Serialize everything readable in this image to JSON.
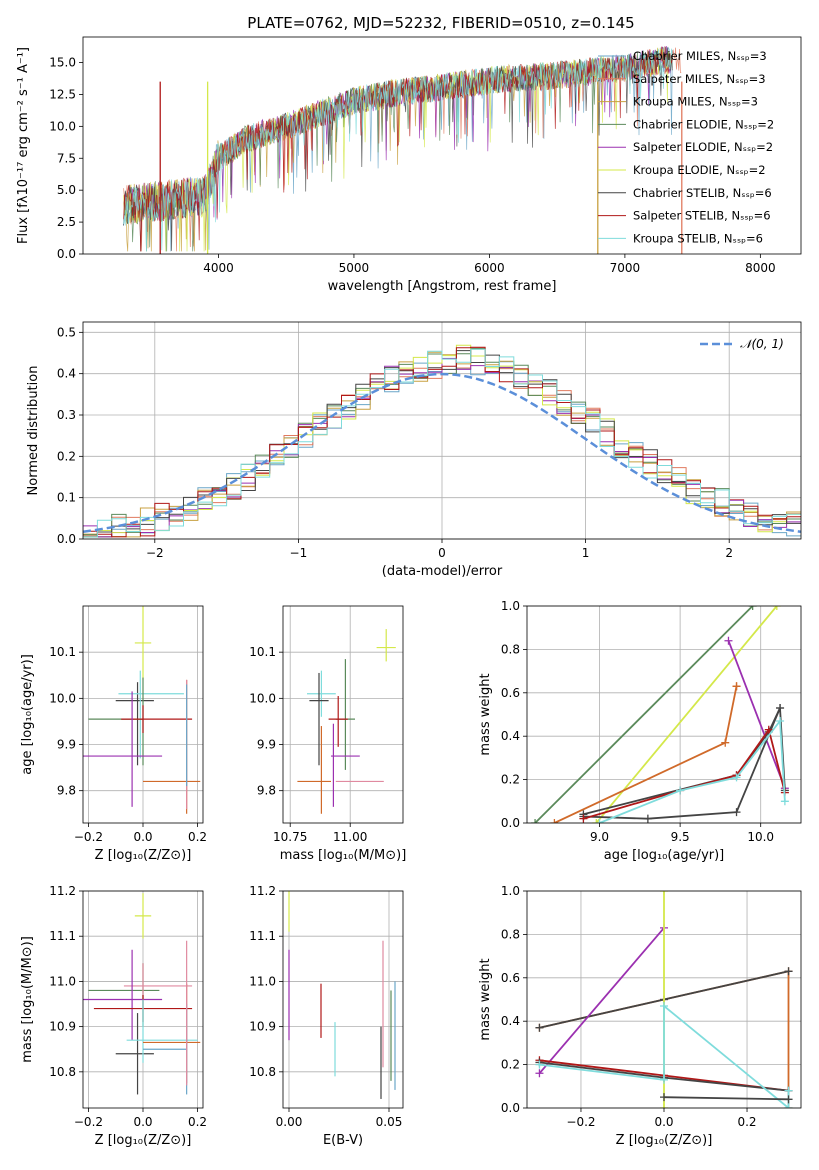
{
  "figure_title": "PLATE=0762, MJD=52232, FIBERID=0510, z=0.145",
  "chart_data": [
    {
      "id": "spectrum",
      "type": "line",
      "title": "PLATE=0762, MJD=52232, FIBERID=0510, z=0.145",
      "xlabel": "wavelength [Angstrom, rest frame]",
      "ylabel": "Flux [fλ10⁻¹⁷ erg cm⁻² s⁻¹ A⁻¹]",
      "xlim": [
        3000,
        8300
      ],
      "ylim": [
        0,
        17
      ],
      "xticks": [
        4000,
        5000,
        6000,
        7000,
        8000
      ],
      "yticks": [
        0.0,
        2.5,
        5.0,
        7.5,
        10.0,
        12.5,
        15.0
      ],
      "legend_position": "right",
      "series": [
        {
          "name": "Chabrier MILES, Nₛₛₚ=3",
          "color": "#6aa6c8"
        },
        {
          "name": "Salpeter MILES, Nₛₛₚ=3",
          "color": "#e07a5f"
        },
        {
          "name": "Kroupa MILES, Nₛₛₚ=3",
          "color": "#c8a040"
        },
        {
          "name": "Chabrier ELODIE, Nₛₛₚ=2",
          "color": "#5b8a5b"
        },
        {
          "name": "Salpeter ELODIE, Nₛₛₚ=2",
          "color": "#9b30b0"
        },
        {
          "name": "Kroupa ELODIE, Nₛₛₚ=2",
          "color": "#d4e84a"
        },
        {
          "name": "Chabrier STELIB, Nₛₛₚ=6",
          "color": "#444444"
        },
        {
          "name": "Salpeter STELIB, Nₛₛₚ=6",
          "color": "#b01818"
        },
        {
          "name": "Kroupa STELIB, Nₛₛₚ=6",
          "color": "#7fdcdc"
        }
      ],
      "continuum": {
        "x": [
          3300,
          3600,
          3900,
          4000,
          4200,
          4500,
          4800,
          5000,
          5300,
          5600,
          6000,
          6500,
          7000,
          7300
        ],
        "y": [
          3.8,
          4.2,
          4.6,
          7.5,
          9.0,
          10.0,
          11.2,
          12.0,
          12.6,
          13.0,
          13.6,
          14.0,
          14.6,
          15.2
        ]
      },
      "drops": [
        {
          "x": 3570,
          "color": "#b01818"
        },
        {
          "x": 3920,
          "color": "#d4e84a"
        },
        {
          "x": 6800,
          "color": "#c8a040"
        },
        {
          "x": 7420,
          "color": "#e07a5f"
        }
      ]
    },
    {
      "id": "residuals",
      "type": "line",
      "xlabel": "(data-model)/error",
      "ylabel": "Normed distribution",
      "xlim": [
        -2.5,
        2.5
      ],
      "ylim": [
        0,
        0.525
      ],
      "xticks": [
        -2,
        -1,
        0,
        1,
        2
      ],
      "yticks": [
        0.0,
        0.1,
        0.2,
        0.3,
        0.4,
        0.5
      ],
      "legend": "𝒩(0, 1)",
      "legend_position": "top-right",
      "gaussian_color": "#5b8fd9",
      "bin_edges_start": -2.5,
      "bin_width": 0.1,
      "hist_colors": [
        "#6aa6c8",
        "#e07a5f",
        "#c8a040",
        "#5b8a5b",
        "#9b30b0",
        "#d4e84a",
        "#444444",
        "#b01818",
        "#7fdcdc"
      ]
    },
    {
      "id": "age-vs-z",
      "type": "scatter",
      "xlabel": "Z [log₁₀(Z/Z⊙)]",
      "ylabel": "age  [log₁₀(age/yr)]",
      "xlim": [
        -0.22,
        0.22
      ],
      "ylim": [
        9.73,
        10.2
      ],
      "xticks": [
        -0.2,
        0.0,
        0.2
      ],
      "yticks": [
        9.8,
        9.9,
        10.0,
        10.1
      ],
      "points": [
        {
          "x": 0.0,
          "y": 10.12,
          "xerr": 0.03,
          "yerr": [
            0.08,
            0.08
          ],
          "color": "#d4e84a"
        },
        {
          "x": -0.02,
          "y": 9.995,
          "xerr": [
            0.08,
            0.06
          ],
          "yerr": [
            0.14,
            0.04
          ],
          "color": "#444444"
        },
        {
          "x": -0.01,
          "y": 10.01,
          "xerr": [
            0.08,
            0.16
          ],
          "yerr": [
            0.14,
            0.05
          ],
          "color": "#7fdcdc"
        },
        {
          "x": 0.0,
          "y": 9.955,
          "xerr": [
            0.2,
            0.0
          ],
          "yerr": [
            0.1,
            0.09
          ],
          "color": "#5b8a5b"
        },
        {
          "x": 0.0,
          "y": 9.955,
          "xerr": [
            0.08,
            0.18
          ],
          "yerr": [
            0.03,
            0.03
          ],
          "color": "#b01818"
        },
        {
          "x": -0.04,
          "y": 9.875,
          "xerr": [
            0.18,
            0.11
          ],
          "yerr": [
            0.11,
            0.14
          ],
          "color": "#9b30b0"
        },
        {
          "x": 0.16,
          "y": 9.82,
          "xerr": [
            0.16,
            0.05
          ],
          "yerr": [
            0.07,
            0.22
          ],
          "color": "#d06a2a"
        },
        {
          "x": 0.16,
          "y": 9.93,
          "xerr": 0.0,
          "yerr": [
            0.17,
            0.11
          ],
          "color": "#e08aa0"
        },
        {
          "x": 0.16,
          "y": 9.93,
          "xerr": 0.0,
          "yerr": [
            0.12,
            0.1
          ],
          "color": "#6aa6c8"
        }
      ]
    },
    {
      "id": "age-vs-mass",
      "type": "scatter",
      "xlabel": "mass [log₁₀(M/M⊙)]",
      "xlim": [
        10.72,
        11.22
      ],
      "ylim": [
        9.73,
        10.2
      ],
      "xticks": [
        10.75,
        11.0
      ],
      "xtick_labels": [
        "10.75",
        "11.00"
      ],
      "yticks": [
        9.8,
        9.9,
        10.0,
        10.1
      ],
      "points": [
        {
          "x": 11.15,
          "y": 10.11,
          "xerr": 0.04,
          "yerr": [
            0.03,
            0.04
          ],
          "color": "#d4e84a"
        },
        {
          "x": 10.88,
          "y": 10.01,
          "xerr": 0.06,
          "yerr": [
            0.05,
            0.05
          ],
          "color": "#7fdcdc"
        },
        {
          "x": 10.87,
          "y": 9.995,
          "xerr": [
            0.04,
            0.04
          ],
          "yerr": [
            0.14,
            0.06
          ],
          "color": "#444444"
        },
        {
          "x": 10.98,
          "y": 9.955,
          "xerr": 0.04,
          "yerr": [
            0.11,
            0.13
          ],
          "color": "#5b8a5b"
        },
        {
          "x": 10.95,
          "y": 9.955,
          "xerr": 0.04,
          "yerr": [
            0.06,
            0.05
          ],
          "color": "#b01818"
        },
        {
          "x": 10.93,
          "y": 9.875,
          "xerr": [
            0.01,
            0.11
          ],
          "yerr": [
            0.11,
            0.07
          ],
          "color": "#9b30b0"
        },
        {
          "x": 10.88,
          "y": 9.82,
          "xerr": [
            0.1,
            0.04
          ],
          "yerr": [
            0.07,
            0.12
          ],
          "color": "#d06a2a"
        },
        {
          "x": 11.04,
          "y": 9.82,
          "xerr": 0.1,
          "yerr": [
            0.0,
            0.0
          ],
          "color": "#e08aa0"
        }
      ]
    },
    {
      "id": "mass-weight-vs-age",
      "type": "line",
      "xlabel": "age  [log₁₀(age/yr)]",
      "ylabel": "mass weight",
      "xlim": [
        8.55,
        10.25
      ],
      "ylim": [
        0,
        1.0
      ],
      "xticks": [
        9.0,
        9.5,
        10.0
      ],
      "yticks": [
        0.0,
        0.2,
        0.4,
        0.6,
        0.8,
        1.0
      ],
      "series": [
        {
          "color": "#5b8a5b",
          "x": [
            8.6,
            9.95
          ],
          "y": [
            0.0,
            1.0
          ]
        },
        {
          "color": "#d4e84a",
          "x": [
            8.98,
            10.1
          ],
          "y": [
            0.0,
            1.0
          ]
        },
        {
          "color": "#9b30b0",
          "x": [
            9.8,
            10.15
          ],
          "y": [
            0.84,
            0.16
          ]
        },
        {
          "color": "#d06a2a",
          "x": [
            8.72,
            9.78,
            9.85,
            9.85
          ],
          "y": [
            0.0,
            0.37,
            0.63,
            0.63
          ]
        },
        {
          "color": "#444444",
          "x": [
            8.9,
            9.3,
            9.85,
            10.12,
            10.15
          ],
          "y": [
            0.03,
            0.02,
            0.05,
            0.53,
            0.15
          ]
        },
        {
          "color": "#444444",
          "x": [
            8.9,
            9.85,
            10.05,
            10.12
          ],
          "y": [
            0.04,
            0.22,
            0.42,
            0.53
          ]
        },
        {
          "color": "#b01818",
          "x": [
            8.9,
            9.5,
            9.85,
            10.05,
            10.15
          ],
          "y": [
            0.02,
            0.15,
            0.22,
            0.43,
            0.14
          ]
        },
        {
          "color": "#7fdcdc",
          "x": [
            9.0,
            9.5,
            9.85,
            10.12,
            10.15
          ],
          "y": [
            0.0,
            0.15,
            0.21,
            0.47,
            0.1
          ]
        }
      ]
    },
    {
      "id": "mass-vs-z",
      "type": "scatter",
      "xlabel": "Z [log₁₀(Z/Z⊙)]",
      "ylabel": "mass [log₁₀(M/M⊙)]",
      "xlim": [
        -0.22,
        0.22
      ],
      "ylim": [
        10.72,
        11.2
      ],
      "xticks": [
        -0.2,
        0.0,
        0.2
      ],
      "yticks": [
        10.8,
        10.9,
        11.0,
        11.1,
        11.2
      ],
      "points": [
        {
          "x": 0.0,
          "y": 11.145,
          "xerr": 0.03,
          "yerr": [
            0.05,
            0.05
          ],
          "color": "#d4e84a"
        },
        {
          "x": 0.0,
          "y": 10.98,
          "xerr": [
            0.2,
            0.06
          ],
          "yerr": [
            0.08,
            0.06
          ],
          "color": "#5b8a5b"
        },
        {
          "x": 0.0,
          "y": 10.99,
          "xerr": [
            0.07,
            0.18
          ],
          "yerr": [
            0.05,
            0.05
          ],
          "color": "#e08aa0"
        },
        {
          "x": -0.04,
          "y": 10.96,
          "xerr": [
            0.18,
            0.11
          ],
          "yerr": [
            0.09,
            0.11
          ],
          "color": "#9b30b0"
        },
        {
          "x": 0.0,
          "y": 10.94,
          "xerr": [
            0.18,
            0.18
          ],
          "yerr": [
            0.03,
            0.03
          ],
          "color": "#b01818"
        },
        {
          "x": -0.02,
          "y": 10.84,
          "xerr": [
            0.08,
            0.06
          ],
          "yerr": [
            0.09,
            0.09
          ],
          "color": "#444444"
        },
        {
          "x": 0.0,
          "y": 10.87,
          "xerr": [
            0.06,
            0.2
          ],
          "yerr": [
            0.05,
            0.09
          ],
          "color": "#7fdcdc"
        },
        {
          "x": 0.16,
          "y": 10.865,
          "xerr": [
            0.16,
            0.05
          ],
          "yerr": [
            0.09,
            0.13
          ],
          "color": "#d06a2a"
        },
        {
          "x": 0.16,
          "y": 10.85,
          "xerr": [
            0.16,
            0.0
          ],
          "yerr": [
            0.1,
            0.1
          ],
          "color": "#6aa6c8"
        },
        {
          "x": 0.16,
          "y": 10.93,
          "xerr": 0.0,
          "yerr": [
            0.16,
            0.16
          ],
          "color": "#e08aa0"
        }
      ]
    },
    {
      "id": "mass-vs-ebv",
      "type": "scatter",
      "xlabel": "E(B-V)",
      "xlim": [
        -0.003,
        0.057
      ],
      "ylim": [
        10.72,
        11.2
      ],
      "xticks": [
        0.0,
        0.05
      ],
      "xtick_labels": [
        "0.00",
        "0.05"
      ],
      "yticks": [
        10.8,
        10.9,
        11.0,
        11.1,
        11.2
      ],
      "points": [
        {
          "x": 0.0,
          "y": 11.15,
          "yerr": [
            0.04,
            0.05
          ],
          "color": "#d4e84a"
        },
        {
          "x": 0.0,
          "y": 10.97,
          "yerr": [
            0.1,
            0.1
          ],
          "color": "#9b30b0"
        },
        {
          "x": 0.016,
          "y": 10.935,
          "yerr": [
            0.06,
            0.06
          ],
          "color": "#b01818"
        },
        {
          "x": 0.023,
          "y": 10.85,
          "yerr": [
            0.06,
            0.06
          ],
          "color": "#7fdcdc"
        },
        {
          "x": 0.046,
          "y": 10.82,
          "yerr": [
            0.08,
            0.08
          ],
          "color": "#444444"
        },
        {
          "x": 0.047,
          "y": 10.95,
          "yerr": [
            0.14,
            0.14
          ],
          "color": "#e08aa0"
        },
        {
          "x": 0.051,
          "y": 10.88,
          "yerr": [
            0.1,
            0.1
          ],
          "color": "#5b8a5b"
        },
        {
          "x": 0.053,
          "y": 10.88,
          "yerr": [
            0.12,
            0.12
          ],
          "color": "#6aa6c8"
        }
      ]
    },
    {
      "id": "mass-weight-vs-z",
      "type": "line",
      "xlabel": "Z [log₁₀(Z/Z⊙)]",
      "ylabel": "mass weight",
      "xlim": [
        -0.33,
        0.33
      ],
      "ylim": [
        0,
        1.0
      ],
      "xticks": [
        -0.2,
        0.0,
        0.2
      ],
      "yticks": [
        0.0,
        0.2,
        0.4,
        0.6,
        0.8,
        1.0
      ],
      "series": [
        {
          "color": "#d06a2a",
          "x": [
            -0.3,
            0.0,
            0.3,
            0.3
          ],
          "y": [
            0.37,
            0.5,
            0.63,
            0.0
          ]
        },
        {
          "color": "#444444",
          "x": [
            -0.3,
            0.0,
            0.3
          ],
          "y": [
            0.37,
            0.5,
            0.63
          ]
        },
        {
          "color": "#9b30b0",
          "x": [
            -0.3,
            0.0
          ],
          "y": [
            0.16,
            0.83
          ]
        },
        {
          "color": "#d4e84a",
          "x": [
            0.0,
            0.0
          ],
          "y": [
            1.0,
            0.0
          ]
        },
        {
          "color": "#b01818",
          "x": [
            -0.3,
            0.0,
            0.3
          ],
          "y": [
            0.22,
            0.15,
            0.08
          ]
        },
        {
          "color": "#444444",
          "x": [
            -0.3,
            0.0,
            0.3
          ],
          "y": [
            0.21,
            0.14,
            0.08
          ]
        },
        {
          "color": "#7fdcdc",
          "x": [
            -0.3,
            0.0,
            0.0,
            0.3,
            0.3
          ],
          "y": [
            0.2,
            0.13,
            0.47,
            0.0,
            0.08
          ]
        },
        {
          "color": "#444444",
          "x": [
            0.0,
            0.3
          ],
          "y": [
            0.05,
            0.04
          ]
        }
      ]
    }
  ]
}
